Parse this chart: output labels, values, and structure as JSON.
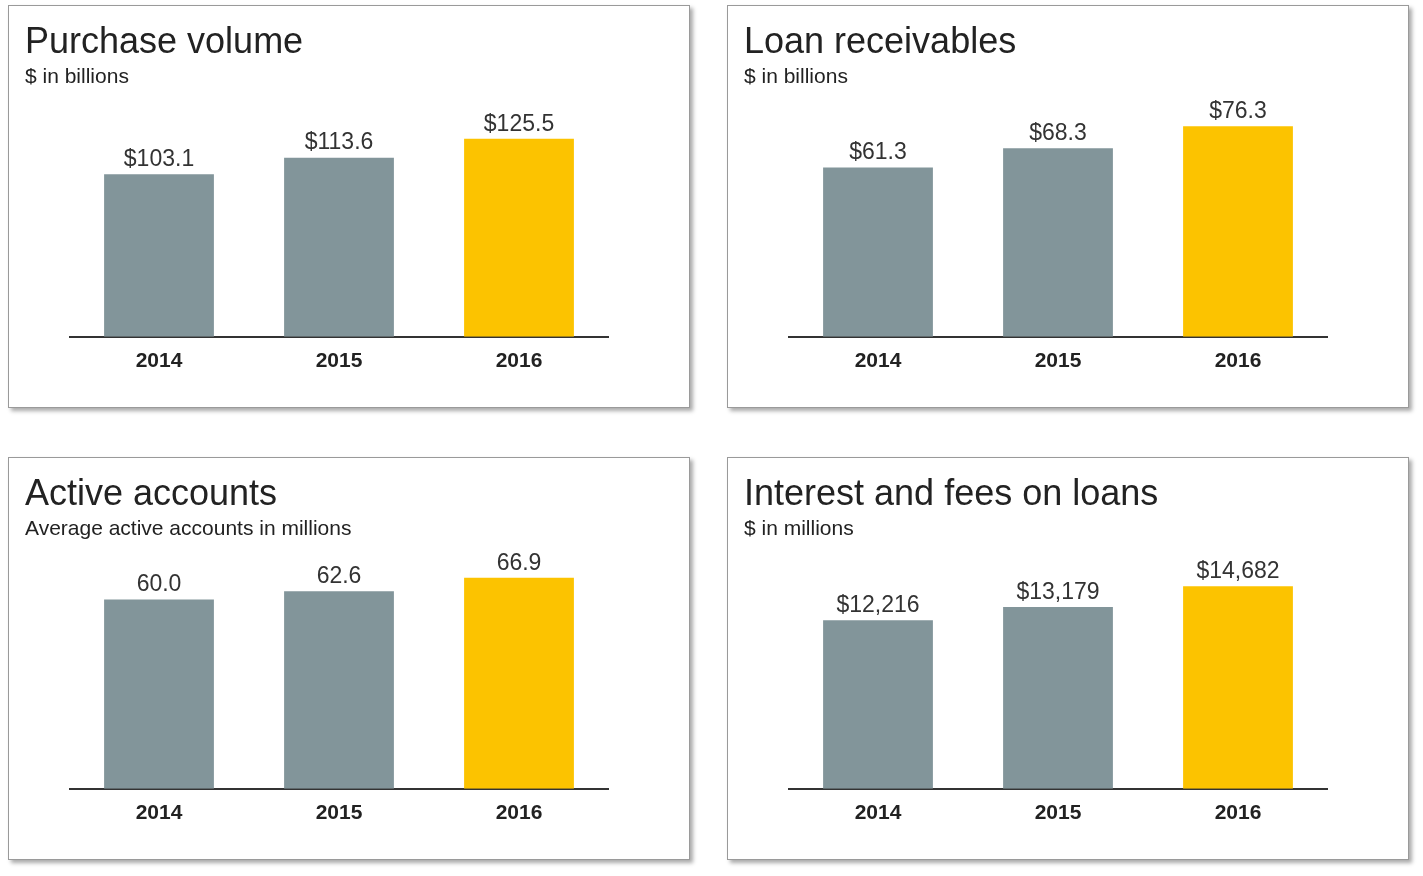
{
  "chart_data": [
    {
      "type": "bar",
      "title": "Purchase volume",
      "subtitle": "$ in billions",
      "categories": [
        "2014",
        "2015",
        "2016"
      ],
      "values": [
        103.1,
        113.6,
        125.5
      ],
      "colors": [
        "#82959a",
        "#82959a",
        "#fcc300"
      ],
      "data_labels": true,
      "value_labels": [
        "$103.1",
        "$113.6",
        "$125.5"
      ]
    },
    {
      "type": "bar",
      "title": "Loan receivables",
      "subtitle": "$ in billions",
      "categories": [
        "2014",
        "2015",
        "2016"
      ],
      "values": [
        61.3,
        68.3,
        76.3
      ],
      "colors": [
        "#82959a",
        "#82959a",
        "#fcc300"
      ],
      "data_labels": true,
      "value_labels": [
        "$61.3",
        "$68.3",
        "$76.3"
      ]
    },
    {
      "type": "bar",
      "title": "Active accounts",
      "subtitle": "Average active accounts in millions",
      "categories": [
        "2014",
        "2015",
        "2016"
      ],
      "values": [
        60.0,
        62.6,
        66.9
      ],
      "colors": [
        "#82959a",
        "#82959a",
        "#fcc300"
      ],
      "data_labels": true,
      "value_labels": [
        "60.0",
        "62.6",
        "66.9"
      ]
    },
    {
      "type": "bar",
      "title": "Interest and fees on loans",
      "subtitle": "$ in millions",
      "categories": [
        "2014",
        "2015",
        "2016"
      ],
      "values": [
        12216,
        13179,
        14682
      ],
      "colors": [
        "#82959a",
        "#82959a",
        "#fcc300"
      ],
      "data_labels": true,
      "value_labels": [
        "$12,216",
        "$13,179",
        "$14,682"
      ]
    }
  ]
}
